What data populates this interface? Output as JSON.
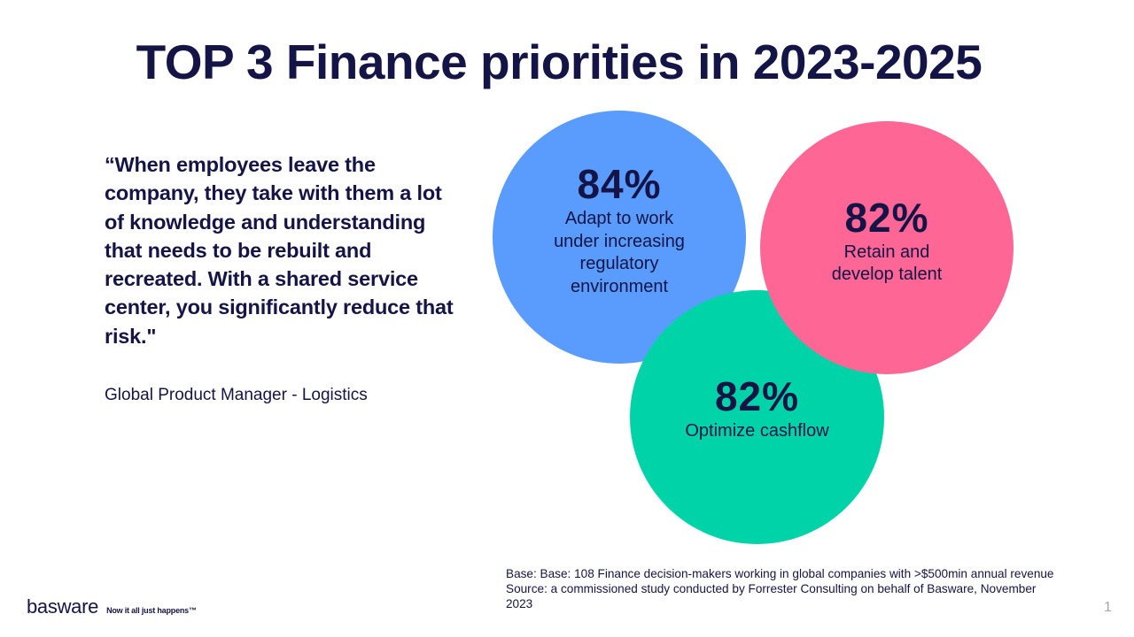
{
  "slide": {
    "title": "TOP 3 Finance priorities in 2023-2025",
    "quote": "“When employees leave the company, they take with them a lot of knowledge and understanding that needs to be rebuilt and recreated. With a shared service center, you significantly reduce that risk.\"",
    "attribution": "Global Product Manager - Logistics",
    "priorities": [
      {
        "percent": "84%",
        "label": "Adapt to work under increasing regulatory environment",
        "color": "#5a9cfe"
      },
      {
        "percent": "82%",
        "label": "Retain and develop talent",
        "color": "#fe6795"
      },
      {
        "percent": "82%",
        "label": "Optimize cashflow",
        "color": "#00d3a8"
      }
    ],
    "source_note": "Base: Base: 108 Finance decision-makers working in global companies with >$500min annual revenue Source: a commissioned study conducted by Forrester Consulting on behalf of Basware, November 2023",
    "page_number": "1"
  },
  "brand": {
    "logo_text": "basware",
    "tagline": "Now it all just happens™"
  }
}
